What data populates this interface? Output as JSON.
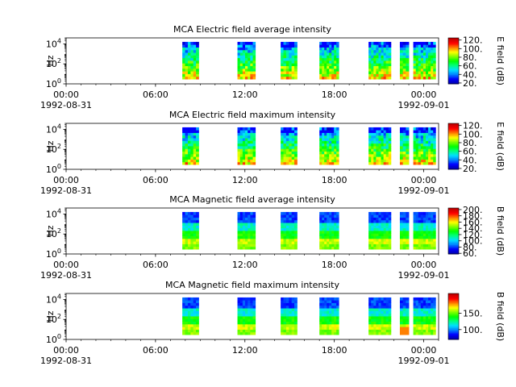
{
  "figure": {
    "colors": {
      "background": "#ffffff",
      "axis": "#000000",
      "colormap": [
        "#0000aa",
        "#0000ff",
        "#0080ff",
        "#00e0ff",
        "#00ff80",
        "#00ff00",
        "#80ff00",
        "#ffff00",
        "#ff8000",
        "#ff0000",
        "#c00000"
      ]
    }
  },
  "chart_data": [
    {
      "type": "heatmap",
      "title": "MCA  Electric field average intensity",
      "xlabel": "",
      "ylabel": "Hz",
      "ylim": [
        1,
        40000
      ],
      "y_scale": "log",
      "y_ticks": [
        "10^0",
        "10^2",
        "10^4"
      ],
      "x_range": [
        "1992-08-31 00:00",
        "1992-09-01 01:00"
      ],
      "x_ticks": [
        {
          "time": "00:00",
          "date": "1992-08-31"
        },
        {
          "time": "06:00",
          "date": ""
        },
        {
          "time": "12:00",
          "date": ""
        },
        {
          "time": "18:00",
          "date": ""
        },
        {
          "time": "00:00",
          "date": "1992-09-01"
        }
      ],
      "colorbar": {
        "label": "E field (dB)",
        "range": [
          18,
          125
        ],
        "ticks": [
          "20.",
          "40.",
          "60.",
          "80.",
          "100.",
          "120."
        ]
      },
      "data_intervals_hours": [
        [
          7.8,
          8.9
        ],
        [
          11.5,
          12.7
        ],
        [
          14.4,
          15.5
        ],
        [
          17.0,
          18.3
        ],
        [
          20.3,
          21.8
        ],
        [
          22.4,
          23.0
        ],
        [
          23.3,
          24.8
        ]
      ]
    },
    {
      "type": "heatmap",
      "title": "MCA  Electric field maximum intensity",
      "xlabel": "",
      "ylabel": "Hz",
      "ylim": [
        1,
        40000
      ],
      "y_scale": "log",
      "y_ticks": [
        "10^0",
        "10^2",
        "10^4"
      ],
      "x_range": [
        "1992-08-31 00:00",
        "1992-09-01 01:00"
      ],
      "x_ticks": [
        {
          "time": "00:00",
          "date": "1992-08-31"
        },
        {
          "time": "06:00",
          "date": ""
        },
        {
          "time": "12:00",
          "date": ""
        },
        {
          "time": "18:00",
          "date": ""
        },
        {
          "time": "00:00",
          "date": "1992-09-01"
        }
      ],
      "colorbar": {
        "label": "E field (dB)",
        "range": [
          18,
          125
        ],
        "ticks": [
          "20.",
          "40.",
          "60.",
          "80.",
          "100.",
          "120."
        ]
      },
      "data_intervals_hours": [
        [
          7.8,
          8.9
        ],
        [
          11.5,
          12.7
        ],
        [
          14.4,
          15.5
        ],
        [
          17.0,
          18.3
        ],
        [
          20.3,
          21.8
        ],
        [
          22.4,
          23.0
        ],
        [
          23.3,
          24.8
        ]
      ]
    },
    {
      "type": "heatmap",
      "title": "MCA  Magnetic field average intensity",
      "xlabel": "",
      "ylabel": "Hz",
      "ylim": [
        1,
        40000
      ],
      "y_scale": "log",
      "y_ticks": [
        "10^0",
        "10^2",
        "10^4"
      ],
      "x_range": [
        "1992-08-31 00:00",
        "1992-09-01 01:00"
      ],
      "x_ticks": [
        {
          "time": "00:00",
          "date": "1992-08-31"
        },
        {
          "time": "06:00",
          "date": ""
        },
        {
          "time": "12:00",
          "date": ""
        },
        {
          "time": "18:00",
          "date": ""
        },
        {
          "time": "00:00",
          "date": "1992-09-01"
        }
      ],
      "colorbar": {
        "label": "B field (dB)",
        "range": [
          58,
          205
        ],
        "ticks": [
          "60.",
          "80.",
          "100.",
          "120.",
          "140.",
          "160.",
          "180.",
          "200."
        ]
      },
      "data_intervals_hours": [
        [
          7.8,
          8.9
        ],
        [
          11.5,
          12.7
        ],
        [
          14.4,
          15.5
        ],
        [
          17.0,
          18.3
        ],
        [
          20.3,
          21.8
        ],
        [
          22.4,
          23.0
        ],
        [
          23.3,
          24.8
        ]
      ]
    },
    {
      "type": "heatmap",
      "title": "MCA  Magnetic field maximum intensity",
      "xlabel": "",
      "ylabel": "Hz",
      "ylim": [
        1,
        40000
      ],
      "y_scale": "log",
      "y_ticks": [
        "10^0",
        "10^2",
        "10^4"
      ],
      "x_range": [
        "1992-08-31 00:00",
        "1992-09-01 01:00"
      ],
      "x_ticks": [
        {
          "time": "00:00",
          "date": "1992-08-31"
        },
        {
          "time": "06:00",
          "date": ""
        },
        {
          "time": "12:00",
          "date": ""
        },
        {
          "time": "18:00",
          "date": ""
        },
        {
          "time": "00:00",
          "date": "1992-09-01"
        }
      ],
      "colorbar": {
        "label": "B field (dB)",
        "range": [
          70,
          210
        ],
        "ticks": [
          "100.",
          "150."
        ]
      },
      "data_intervals_hours": [
        [
          7.8,
          8.9
        ],
        [
          11.5,
          12.7
        ],
        [
          14.4,
          15.5
        ],
        [
          17.0,
          18.3
        ],
        [
          20.3,
          21.8
        ],
        [
          22.4,
          23.0
        ],
        [
          23.3,
          24.8
        ]
      ]
    }
  ]
}
